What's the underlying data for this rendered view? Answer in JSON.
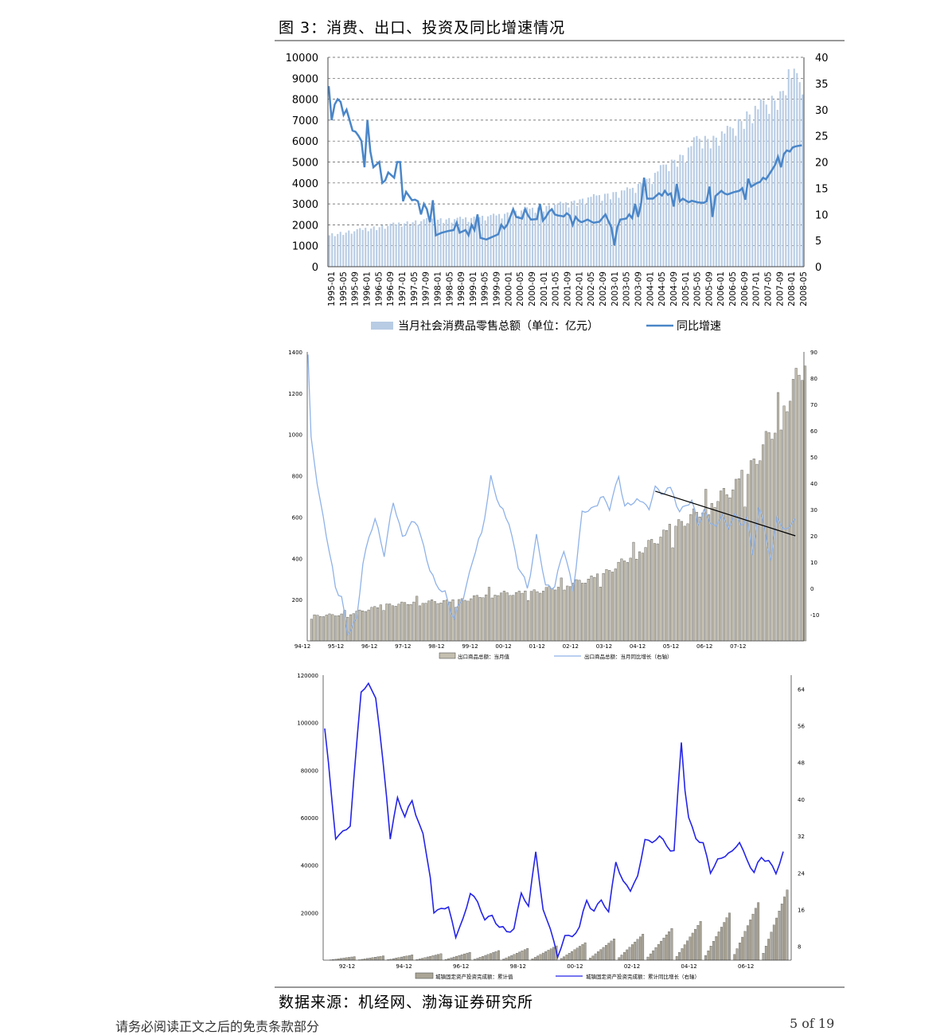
{
  "figure_title": "图 3：消费、出口、投资及同比增速情况",
  "source_note": "数据来源：机经网、渤海证券研究所",
  "footer_left": "请务必阅读正文之后的免责条款部分",
  "footer_right": "5 of 19",
  "colors": {
    "bar1": "#b8cce4",
    "line1": "#4a86c8",
    "bar2": "#c4bfb0",
    "line2": "#8fb2e8",
    "bar3": "#aaa597",
    "line3": "#2424e8",
    "trend": "#000000"
  },
  "chart_data": [
    {
      "type": "bar",
      "title": "",
      "legend": [
        "当月社会消费品零售总额（单位：亿元）",
        "同比增速"
      ],
      "legend_position": "bottom",
      "grid": true,
      "ylim_left": [
        0,
        10000
      ],
      "ylim_right": [
        0,
        40
      ],
      "yticks_left": [
        "0",
        "1000",
        "2000",
        "3000",
        "4000",
        "5000",
        "6000",
        "7000",
        "8000",
        "9000",
        "10000"
      ],
      "yticks_right": [
        "0",
        "5",
        "10",
        "15",
        "20",
        "25",
        "30",
        "35",
        "40"
      ],
      "xticks": [
        "1995-01",
        "1995-05",
        "1995-09",
        "1996-01",
        "1996-05",
        "1996-09",
        "1997-01",
        "1997-05",
        "1997-09",
        "1998-01",
        "1998-05",
        "1998-09",
        "1999-01",
        "1999-05",
        "1999-09",
        "2000-01",
        "2000-05",
        "2000-09",
        "2001-01",
        "2001-05",
        "2001-09",
        "2002-01",
        "2002-05",
        "2002-09",
        "2003-01",
        "2003-05",
        "2003-09",
        "2004-01",
        "2004-05",
        "2004-09",
        "2005-01",
        "2005-05",
        "2005-09",
        "2006-01",
        "2006-05",
        "2006-09",
        "2007-01",
        "2007-05",
        "2007-09",
        "2008-01",
        "2008-05"
      ],
      "bar_anchors": [
        [
          0,
          1500
        ],
        [
          12,
          1750
        ],
        [
          24,
          2000
        ],
        [
          36,
          2200
        ],
        [
          48,
          2250
        ],
        [
          60,
          2400
        ],
        [
          72,
          2700
        ],
        [
          84,
          2950
        ],
        [
          96,
          3300
        ],
        [
          108,
          3600
        ],
        [
          116,
          4200
        ],
        [
          120,
          4700
        ],
        [
          128,
          5300
        ],
        [
          132,
          6000
        ],
        [
          138,
          6000
        ],
        [
          144,
          6400
        ],
        [
          150,
          7100
        ],
        [
          156,
          7600
        ],
        [
          162,
          8000
        ],
        [
          165,
          9000
        ],
        [
          170,
          8700
        ]
      ],
      "line_anchors": [
        [
          0,
          34.5
        ],
        [
          1,
          28
        ],
        [
          2,
          31
        ],
        [
          3,
          32
        ],
        [
          4,
          31.5
        ],
        [
          5,
          29
        ],
        [
          6,
          30
        ],
        [
          7,
          28
        ],
        [
          8,
          26
        ],
        [
          9,
          25.8
        ],
        [
          10,
          25
        ],
        [
          11,
          24
        ],
        [
          12,
          19
        ],
        [
          13,
          28
        ],
        [
          14,
          22
        ],
        [
          15,
          19
        ],
        [
          16,
          19.5
        ],
        [
          17,
          20
        ],
        [
          18,
          16
        ],
        [
          19,
          16.5
        ],
        [
          20,
          18
        ],
        [
          21,
          17.5
        ],
        [
          22,
          17
        ],
        [
          23,
          20
        ],
        [
          24,
          20
        ],
        [
          25,
          12.5
        ],
        [
          26,
          14.3
        ],
        [
          27,
          13.5
        ],
        [
          28,
          12.7
        ],
        [
          29,
          12.8
        ],
        [
          30,
          12.5
        ],
        [
          31,
          10
        ],
        [
          32,
          12
        ],
        [
          33,
          11
        ],
        [
          34,
          8.5
        ],
        [
          35,
          12.7
        ],
        [
          36,
          6
        ],
        [
          38,
          6.5
        ],
        [
          40,
          6.8
        ],
        [
          42,
          7
        ],
        [
          43,
          8.4
        ],
        [
          44,
          6.5
        ],
        [
          46,
          7
        ],
        [
          47,
          6
        ],
        [
          48,
          8
        ],
        [
          49,
          7
        ],
        [
          50,
          10
        ],
        [
          51,
          5.5
        ],
        [
          53,
          5.2
        ],
        [
          55,
          5.7
        ],
        [
          57,
          6.2
        ],
        [
          58,
          8
        ],
        [
          59,
          7.3
        ],
        [
          60,
          8
        ],
        [
          62,
          11
        ],
        [
          63,
          9.5
        ],
        [
          65,
          9.2
        ],
        [
          66,
          11
        ],
        [
          67,
          9.8
        ],
        [
          68,
          9
        ],
        [
          70,
          9.1
        ],
        [
          71,
          12
        ],
        [
          72,
          8.8
        ],
        [
          73,
          9.5
        ],
        [
          74,
          10.5
        ],
        [
          75,
          11
        ],
        [
          76,
          10
        ],
        [
          77,
          9.8
        ],
        [
          79,
          9.6
        ],
        [
          80,
          10.2
        ],
        [
          81,
          9.8
        ],
        [
          82,
          8
        ],
        [
          83,
          9.5
        ],
        [
          84,
          8.8
        ],
        [
          85,
          8.5
        ],
        [
          87,
          9
        ],
        [
          89,
          8.4
        ],
        [
          91,
          8.6
        ],
        [
          93,
          10
        ],
        [
          95,
          7.5
        ],
        [
          96,
          4.1
        ],
        [
          97,
          7.5
        ],
        [
          98,
          9
        ],
        [
          100,
          9.2
        ],
        [
          101,
          10
        ],
        [
          102,
          9.3
        ],
        [
          103,
          12
        ],
        [
          104,
          9.5
        ],
        [
          105,
          12
        ],
        [
          106,
          17
        ],
        [
          107,
          13
        ],
        [
          109,
          13
        ],
        [
          110,
          13.5
        ],
        [
          111,
          14
        ],
        [
          112,
          13.6
        ],
        [
          113,
          14.5
        ],
        [
          114,
          13.7
        ],
        [
          115,
          14
        ],
        [
          116,
          11.5
        ],
        [
          117,
          15.8
        ],
        [
          118,
          12.5
        ],
        [
          119,
          13
        ],
        [
          121,
          12.3
        ],
        [
          122,
          12.6
        ],
        [
          124,
          12.3
        ],
        [
          126,
          12.2
        ],
        [
          127,
          12.5
        ],
        [
          128,
          15.3
        ],
        [
          129,
          9.5
        ],
        [
          130,
          13.5
        ],
        [
          131,
          14
        ],
        [
          132,
          14.5
        ],
        [
          133,
          14
        ],
        [
          134,
          13.8
        ],
        [
          135,
          14
        ],
        [
          136,
          14.2
        ],
        [
          138,
          14.5
        ],
        [
          139,
          15
        ],
        [
          140,
          12.8
        ],
        [
          141,
          16.8
        ],
        [
          142,
          15.3
        ],
        [
          144,
          16
        ],
        [
          145,
          16.2
        ],
        [
          146,
          17
        ],
        [
          147,
          16.7
        ],
        [
          148,
          17.6
        ],
        [
          150,
          19.4
        ],
        [
          151,
          21
        ],
        [
          152,
          19
        ],
        [
          153,
          21.5
        ],
        [
          154,
          22.2
        ],
        [
          155,
          22
        ],
        [
          156,
          22.8
        ],
        [
          157,
          23
        ],
        [
          159,
          23.2
        ]
      ]
    },
    {
      "type": "bar",
      "title": "",
      "legend": [
        "出口商品总额：当月值",
        "出口商品总额：当月同比增长（右轴）"
      ],
      "legend_position": "bottom",
      "grid": false,
      "ylim_left": [
        0,
        1400
      ],
      "ylim_right": [
        -20,
        90
      ],
      "yticks_left": [
        "200",
        "400",
        "600",
        "800",
        "1000",
        "1200",
        "1400"
      ],
      "yticks_right": [
        "-10",
        "0",
        "10",
        "20",
        "30",
        "40",
        "50",
        "60",
        "70",
        "80",
        "90"
      ],
      "xticks": [
        "94-12",
        "95-12",
        "96-12",
        "97-12",
        "98-12",
        "99-12",
        "00-12",
        "01-12",
        "02-12",
        "03-12",
        "04-12",
        "05-12",
        "06-12",
        "07-12"
      ],
      "bar_anchors": [
        [
          0,
          120
        ],
        [
          12,
          130
        ],
        [
          24,
          170
        ],
        [
          36,
          190
        ],
        [
          48,
          190
        ],
        [
          60,
          230
        ],
        [
          72,
          230
        ],
        [
          84,
          270
        ],
        [
          96,
          310
        ],
        [
          108,
          430
        ],
        [
          120,
          540
        ],
        [
          132,
          660
        ],
        [
          144,
          780
        ],
        [
          156,
          1100
        ],
        [
          164,
          1360
        ]
      ],
      "line_anchors": [
        [
          0,
          88
        ],
        [
          1,
          56
        ],
        [
          4,
          34
        ],
        [
          6,
          20
        ],
        [
          9,
          0
        ],
        [
          11,
          -2
        ],
        [
          13,
          -18
        ],
        [
          16,
          -12
        ],
        [
          18,
          11
        ],
        [
          22,
          26
        ],
        [
          25,
          14
        ],
        [
          28,
          32
        ],
        [
          31,
          20
        ],
        [
          33,
          24
        ],
        [
          36,
          24
        ],
        [
          39,
          12
        ],
        [
          42,
          0
        ],
        [
          45,
          -1
        ],
        [
          48,
          -12
        ],
        [
          51,
          -3
        ],
        [
          54,
          11
        ],
        [
          57,
          20
        ],
        [
          60,
          43
        ],
        [
          63,
          30
        ],
        [
          66,
          26
        ],
        [
          69,
          8
        ],
        [
          72,
          0
        ],
        [
          75,
          20
        ],
        [
          78,
          0
        ],
        [
          81,
          2
        ],
        [
          84,
          14
        ],
        [
          87,
          0
        ],
        [
          90,
          28
        ],
        [
          93,
          30
        ],
        [
          96,
          35
        ],
        [
          99,
          30
        ],
        [
          102,
          44
        ],
        [
          104,
          30
        ],
        [
          106,
          32
        ],
        [
          108,
          34
        ],
        [
          110,
          34
        ],
        [
          112,
          28
        ],
        [
          114,
          40
        ],
        [
          116,
          36
        ],
        [
          118,
          38
        ],
        [
          120,
          35
        ],
        [
          122,
          30
        ],
        [
          124,
          32
        ],
        [
          126,
          32
        ],
        [
          128,
          25
        ],
        [
          130,
          30
        ],
        [
          132,
          25
        ],
        [
          134,
          22
        ],
        [
          136,
          30
        ],
        [
          138,
          22
        ],
        [
          140,
          28
        ],
        [
          142,
          24
        ],
        [
          144,
          28
        ],
        [
          146,
          12
        ],
        [
          148,
          30
        ],
        [
          150,
          24
        ],
        [
          152,
          10
        ],
        [
          154,
          27
        ],
        [
          156,
          22
        ],
        [
          158,
          25
        ],
        [
          160,
          25
        ]
      ],
      "trend_anchors": [
        [
          114,
          37
        ],
        [
          160,
          20
        ]
      ]
    },
    {
      "type": "bar",
      "title": "",
      "legend": [
        "城镇固定资产投资完成额：累计值",
        "城镇固定资产投资完成额：累计同比增长（右轴）"
      ],
      "legend_position": "bottom",
      "grid": false,
      "ylim_left": [
        0,
        120000
      ],
      "ylim_right": [
        5,
        67
      ],
      "yticks_left": [
        "20000",
        "40000",
        "60000",
        "80000",
        "100000",
        "120000"
      ],
      "yticks_right": [
        "8",
        "16",
        "24",
        "32",
        "40",
        "48",
        "56",
        "64"
      ],
      "xticks": [
        "92-12",
        "94-12",
        "96-12",
        "98-12",
        "00-12",
        "02-12",
        "04-12",
        "06-12"
      ],
      "line_anchors": [
        [
          0,
          55
        ],
        [
          3,
          32
        ],
        [
          7,
          34
        ],
        [
          10,
          64
        ],
        [
          12,
          65
        ],
        [
          14,
          62
        ],
        [
          17,
          41
        ],
        [
          18,
          32
        ],
        [
          20,
          40
        ],
        [
          22,
          36
        ],
        [
          24,
          40
        ],
        [
          27,
          32
        ],
        [
          29,
          23
        ],
        [
          30,
          15
        ],
        [
          32,
          17
        ],
        [
          34,
          16
        ],
        [
          36,
          10
        ],
        [
          38,
          14
        ],
        [
          40,
          20
        ],
        [
          42,
          17
        ],
        [
          44,
          14
        ],
        [
          46,
          15
        ],
        [
          48,
          12
        ],
        [
          50,
          11
        ],
        [
          52,
          12
        ],
        [
          54,
          20
        ],
        [
          56,
          16
        ],
        [
          58,
          29
        ],
        [
          60,
          16
        ],
        [
          62,
          12
        ],
        [
          64,
          5
        ],
        [
          66,
          11
        ],
        [
          68,
          10
        ],
        [
          70,
          12
        ],
        [
          72,
          18
        ],
        [
          74,
          16
        ],
        [
          76,
          18
        ],
        [
          78,
          15
        ],
        [
          80,
          27
        ],
        [
          82,
          22
        ],
        [
          84,
          20
        ],
        [
          86,
          23
        ],
        [
          88,
          32
        ],
        [
          90,
          30
        ],
        [
          92,
          32
        ],
        [
          94,
          30
        ],
        [
          96,
          29
        ],
        [
          98,
          52
        ],
        [
          99,
          42
        ],
        [
          100,
          36
        ],
        [
          102,
          32
        ],
        [
          104,
          30
        ],
        [
          106,
          24
        ],
        [
          108,
          27
        ],
        [
          110,
          28
        ],
        [
          112,
          28
        ],
        [
          114,
          31
        ],
        [
          116,
          27
        ],
        [
          118,
          24
        ],
        [
          120,
          27
        ],
        [
          122,
          27
        ],
        [
          124,
          24
        ],
        [
          126,
          28
        ]
      ]
    }
  ]
}
